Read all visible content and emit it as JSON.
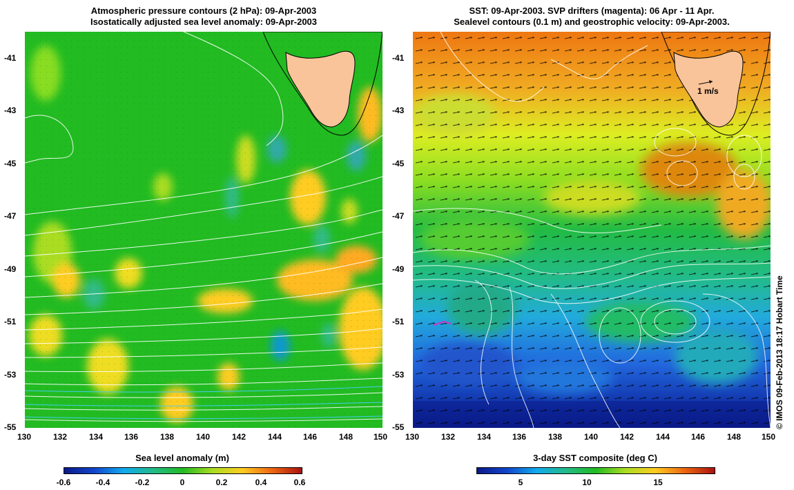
{
  "left_panel": {
    "title_line1": "Atmospheric pressure contours (2 hPa): 09-Apr-2003",
    "title_line2": "Isostatically adjusted sea level anomaly: 09-Apr-2003",
    "colorbar_title": "Sea level anomaly (m)",
    "colorbar_ticks": [
      "-0.6",
      "-0.4",
      "-0.2",
      "0",
      "0.2",
      "0.4",
      "0.6"
    ],
    "colorbar_range": [
      -0.6,
      0.6
    ]
  },
  "right_panel": {
    "title_line1": "SST: 09-Apr-2003. SVP drifters (magenta): 06 Apr - 11 Apr.",
    "title_line2": "Sealevel contours (0.1 m) and geostrophic velocity: 09-Apr-2003.",
    "colorbar_title": "3-day SST composite (deg C)",
    "colorbar_ticks": [
      "5",
      "10",
      "15"
    ],
    "colorbar_range": [
      1.5,
      19.5
    ],
    "velocity_scale_label": "1 m/s"
  },
  "axes": {
    "lon_ticks": [
      "130",
      "132",
      "134",
      "136",
      "138",
      "140",
      "142",
      "144",
      "146",
      "148",
      "150"
    ],
    "lat_ticks": [
      "-41",
      "-43",
      "-45",
      "-47",
      "-49",
      "-51",
      "-53",
      "-55"
    ]
  },
  "credit": "© IMOS 09-Feb-2013 18:17 Hobart Time",
  "colors": {
    "land": "#f9c49a",
    "contour": "#ffffff",
    "drifter": "#cc33cc"
  }
}
